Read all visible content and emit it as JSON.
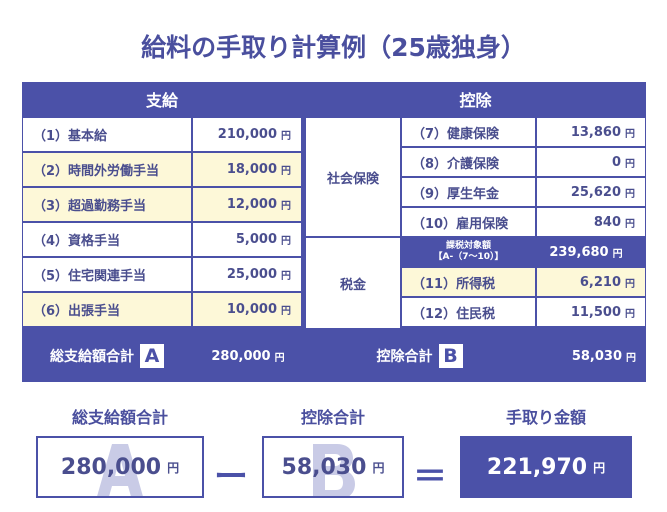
{
  "title": "給料の手取り計算例（25歳独身）",
  "yen": "円",
  "payments": {
    "header": "支給",
    "items": [
      {
        "label": "（1）基本給",
        "value": "210,000",
        "highlight": false
      },
      {
        "label": "（2）時間外労働手当",
        "value": "18,000",
        "highlight": true
      },
      {
        "label": "（3）超過勤務手当",
        "value": "12,000",
        "highlight": true
      },
      {
        "label": "（4）資格手当",
        "value": "5,000",
        "highlight": false
      },
      {
        "label": "（5）住宅関連手当",
        "value": "25,000",
        "highlight": false
      },
      {
        "label": "（6）出張手当",
        "value": "10,000",
        "highlight": true
      }
    ],
    "total_label": "総支給額合計",
    "total_badge": "A",
    "total_value": "280,000"
  },
  "deductions": {
    "header": "控除",
    "social_label": "社会保険",
    "tax_label": "税金",
    "social_items": [
      {
        "label": "（7）健康保険",
        "value": "13,860"
      },
      {
        "label": "（8）介護保険",
        "value": "0"
      },
      {
        "label": "（9）厚生年金",
        "value": "25,620"
      },
      {
        "label": "（10）雇用保険",
        "value": "840"
      }
    ],
    "taxable_label_1": "課税対象額",
    "taxable_label_2": "【A-（7〜10）】",
    "taxable_value": "239,680",
    "tax_items": [
      {
        "label": "（11）所得税",
        "value": "6,210",
        "highlight": true
      },
      {
        "label": "（12）住民税",
        "value": "11,500",
        "highlight": false
      }
    ],
    "total_label": "控除合計",
    "total_badge": "B",
    "total_value": "58,030"
  },
  "formula": {
    "a_label": "総支給額合計",
    "a_value": "280,000",
    "a_mark": "A",
    "minus": "ー",
    "b_label": "控除合計",
    "b_value": "58,030",
    "b_mark": "B",
    "equals": "＝",
    "result_label": "手取り金額",
    "result_value": "221,970",
    "accent_color": "#4b51a8",
    "highlight_color": "#fdf8d8"
  }
}
